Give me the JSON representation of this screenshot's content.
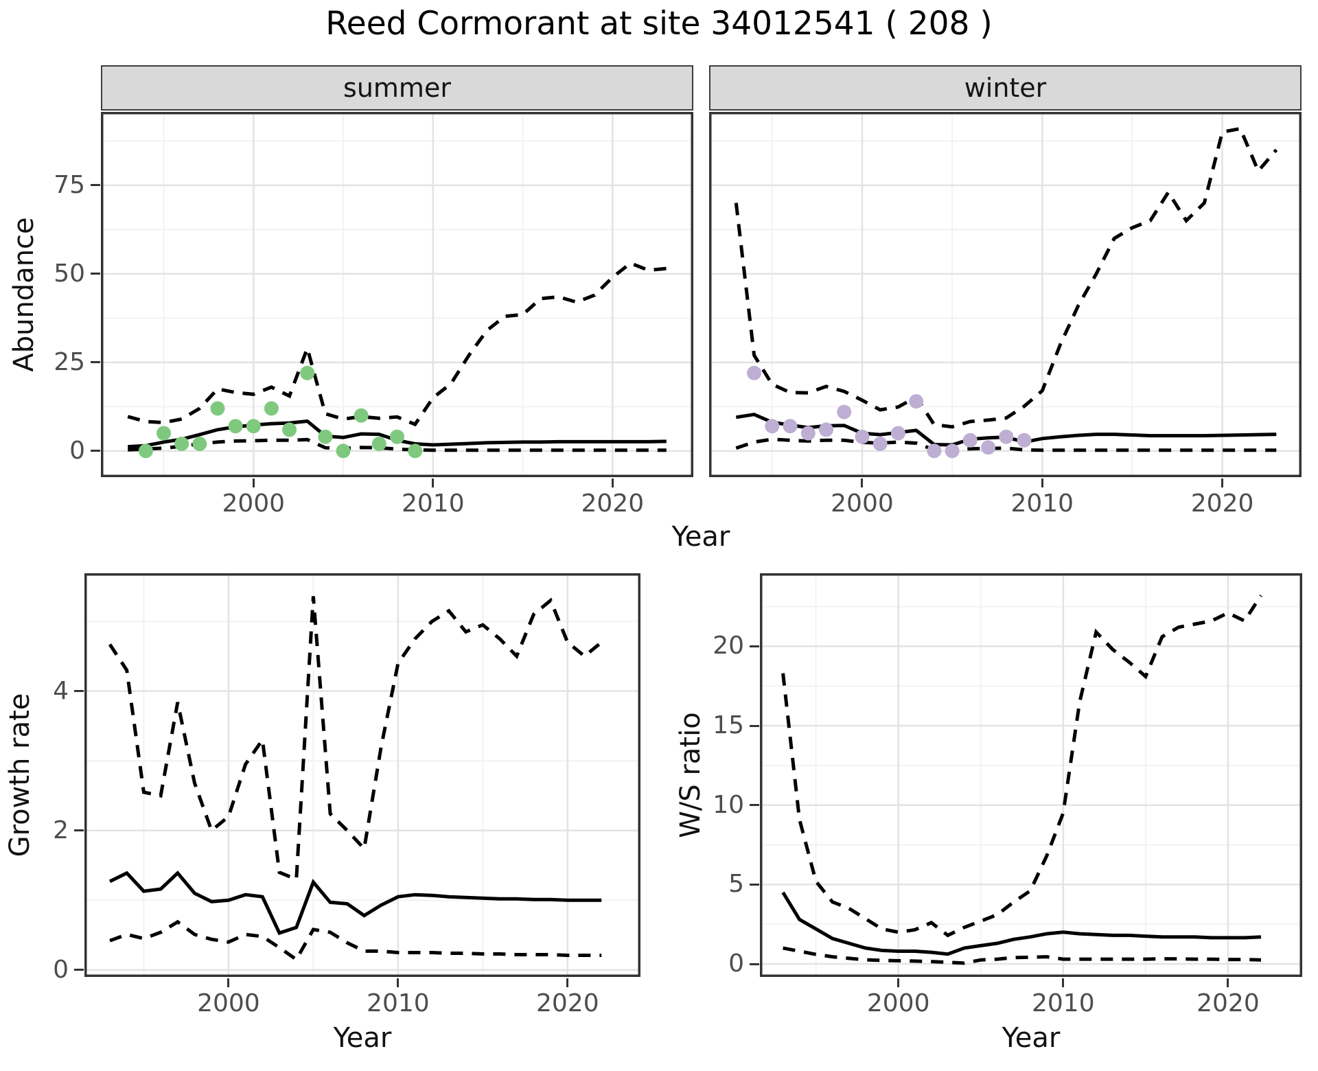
{
  "title": "Reed Cormorant at site 34012541 ( 208 )",
  "colors": {
    "summer_points": "#7FC97F",
    "winter_points": "#BEAED4",
    "line": "#000000",
    "strip_background": "#D9D9D9",
    "panel_border": "#333333",
    "grid_major": "#E3E3E3",
    "grid_minor": "#F2F2F2",
    "axis_text": "#4D4D4D",
    "tick_mark": "#333333"
  },
  "chart_data": [
    {
      "id": "abundance-summer",
      "type": "line",
      "facet_label": "summer",
      "xlabel": "Year",
      "ylabel": "Abundance",
      "xlim": [
        1991.5,
        2024.5
      ],
      "ylim": [
        -7.4,
        95.7
      ],
      "x_ticks": [
        2000,
        2010,
        2020
      ],
      "x_minor": [
        1995,
        2005,
        2015
      ],
      "y_ticks": [
        0,
        25,
        50,
        75
      ],
      "y_minor": [
        12.5,
        37.5,
        62.5,
        87.5
      ],
      "grid": true,
      "legend": "none",
      "years": [
        1993,
        1994,
        1995,
        1996,
        1997,
        1998,
        1999,
        2000,
        2001,
        2002,
        2003,
        2004,
        2005,
        2006,
        2007,
        2008,
        2009,
        2010,
        2011,
        2012,
        2013,
        2014,
        2015,
        2016,
        2017,
        2018,
        2019,
        2020,
        2021,
        2022,
        2023
      ],
      "series": [
        {
          "name": "upper_ci",
          "style": "dashed",
          "values": [
            9.7,
            8.3,
            8.0,
            9.0,
            12.0,
            17.5,
            16.5,
            16.0,
            18.0,
            15.5,
            29.0,
            10.5,
            9.0,
            9.7,
            9.2,
            9.6,
            7.5,
            15.0,
            19.0,
            27.0,
            34.0,
            38.0,
            38.5,
            43.0,
            43.5,
            42.0,
            44.0,
            49.0,
            53.0,
            51.0,
            51.5
          ]
        },
        {
          "name": "lower_ci",
          "style": "dashed",
          "values": [
            0.3,
            0.5,
            0.8,
            1.3,
            2.0,
            2.5,
            2.8,
            2.9,
            3.0,
            3.0,
            3.2,
            0.9,
            0.7,
            1.0,
            0.9,
            0.5,
            0.3,
            0.2,
            0.2,
            0.2,
            0.2,
            0.2,
            0.2,
            0.2,
            0.2,
            0.2,
            0.2,
            0.2,
            0.2,
            0.2,
            0.2
          ]
        },
        {
          "name": "mean",
          "style": "solid",
          "values": [
            1.2,
            1.5,
            2.5,
            3.3,
            4.6,
            6.0,
            6.8,
            7.3,
            7.7,
            7.9,
            8.4,
            4.2,
            3.8,
            4.8,
            4.7,
            3.0,
            2.0,
            1.7,
            1.9,
            2.1,
            2.3,
            2.4,
            2.5,
            2.5,
            2.6,
            2.6,
            2.6,
            2.6,
            2.6,
            2.6,
            2.7
          ]
        }
      ],
      "points": {
        "name": "observed_counts",
        "color": "#7FC97F",
        "years": [
          1994,
          1995,
          1996,
          1997,
          1998,
          1999,
          2000,
          2001,
          2002,
          2003,
          2004,
          2005,
          2006,
          2007,
          2008,
          2009
        ],
        "values": [
          0,
          5,
          2,
          2,
          12,
          7,
          7,
          12,
          6,
          22,
          4,
          0,
          10,
          2,
          4,
          0
        ]
      }
    },
    {
      "id": "abundance-winter",
      "type": "line",
      "facet_label": "winter",
      "xlabel": "Year",
      "ylabel": "Abundance",
      "xlim": [
        1991.5,
        2024.4
      ],
      "ylim": [
        -7.4,
        95.7
      ],
      "x_ticks": [
        2000,
        2010,
        2020
      ],
      "x_minor": [
        1995,
        2005,
        2015
      ],
      "y_ticks": [
        0,
        25,
        50,
        75
      ],
      "y_minor": [
        12.5,
        37.5,
        62.5,
        87.5
      ],
      "grid": true,
      "legend": "none",
      "years": [
        1993,
        1994,
        1995,
        1996,
        1997,
        1998,
        1999,
        2000,
        2001,
        2002,
        2003,
        2004,
        2005,
        2006,
        2007,
        2008,
        2009,
        2010,
        2011,
        2012,
        2013,
        2014,
        2015,
        2016,
        2017,
        2018,
        2019,
        2020,
        2021,
        2022,
        2023
      ],
      "series": [
        {
          "name": "upper_ci",
          "style": "dashed",
          "values": [
            70,
            27,
            18.8,
            16.5,
            16.4,
            18.2,
            16.8,
            14.3,
            11.6,
            12.4,
            15.2,
            7.4,
            6.8,
            8.3,
            8.7,
            9.3,
            12.6,
            17,
            30,
            41,
            50,
            60,
            63,
            65,
            73,
            65,
            70,
            90,
            91,
            79,
            85
          ]
        },
        {
          "name": "lower_ci",
          "style": "dashed",
          "values": [
            0.8,
            2.5,
            3.3,
            3.0,
            2.8,
            3.0,
            3.0,
            2.4,
            2.2,
            2.5,
            2.2,
            0.3,
            0.2,
            0.6,
            0.7,
            0.8,
            0.3,
            0.2,
            0.2,
            0.2,
            0.2,
            0.2,
            0.2,
            0.2,
            0.2,
            0.2,
            0.2,
            0.2,
            0.2,
            0.2,
            0.2
          ]
        },
        {
          "name": "mean",
          "style": "solid",
          "values": [
            9.5,
            10.3,
            8.1,
            7.3,
            6.6,
            7.1,
            7.2,
            5.0,
            4.6,
            5.2,
            5.8,
            1.8,
            1.7,
            3.3,
            3.7,
            3.9,
            2.5,
            3.5,
            4.0,
            4.4,
            4.7,
            4.7,
            4.5,
            4.3,
            4.3,
            4.3,
            4.3,
            4.4,
            4.5,
            4.6,
            4.7
          ]
        }
      ],
      "points": {
        "name": "observed_counts",
        "color": "#BEAED4",
        "years": [
          1994,
          1995,
          1996,
          1997,
          1998,
          1999,
          2000,
          2001,
          2002,
          2003,
          2004,
          2005,
          2006,
          2007,
          2008,
          2009
        ],
        "values": [
          22,
          7,
          7,
          5,
          6,
          11,
          4,
          2,
          5,
          14,
          0,
          0,
          3,
          1,
          4,
          3
        ]
      }
    },
    {
      "id": "growth-rate",
      "type": "line",
      "facet_label": "",
      "xlabel": "Year",
      "ylabel": "Growth rate",
      "xlim": [
        1991.5,
        2024.3
      ],
      "ylim": [
        -0.1,
        5.69
      ],
      "x_ticks": [
        2000,
        2010,
        2020
      ],
      "x_minor": [
        1995,
        2005,
        2015
      ],
      "y_ticks": [
        0,
        2,
        4
      ],
      "y_minor": [
        1,
        3,
        5
      ],
      "grid": true,
      "legend": "none",
      "years": [
        1993,
        1994,
        1995,
        1996,
        1997,
        1998,
        1999,
        2000,
        2001,
        2002,
        2003,
        2004,
        2005,
        2006,
        2007,
        2008,
        2009,
        2010,
        2011,
        2012,
        2013,
        2014,
        2015,
        2016,
        2017,
        2018,
        2019,
        2020,
        2021,
        2022
      ],
      "series": [
        {
          "name": "upper_ci",
          "style": "dashed",
          "values": [
            4.67,
            4.3,
            2.55,
            2.5,
            3.84,
            2.68,
            2.0,
            2.2,
            2.95,
            3.3,
            1.4,
            1.3,
            5.36,
            2.24,
            2.0,
            1.74,
            3.2,
            4.4,
            4.75,
            5.0,
            5.15,
            4.85,
            4.95,
            4.75,
            4.5,
            5.1,
            5.3,
            4.7,
            4.5,
            4.7
          ]
        },
        {
          "name": "lower_ci",
          "style": "dashed",
          "values": [
            0.42,
            0.51,
            0.45,
            0.54,
            0.69,
            0.51,
            0.44,
            0.4,
            0.51,
            0.48,
            0.32,
            0.15,
            0.58,
            0.54,
            0.39,
            0.27,
            0.27,
            0.25,
            0.25,
            0.25,
            0.24,
            0.24,
            0.23,
            0.23,
            0.22,
            0.22,
            0.22,
            0.21,
            0.21,
            0.21
          ]
        },
        {
          "name": "mean",
          "style": "solid",
          "values": [
            1.27,
            1.39,
            1.13,
            1.16,
            1.39,
            1.1,
            0.98,
            1.0,
            1.08,
            1.05,
            0.53,
            0.61,
            1.26,
            0.97,
            0.95,
            0.78,
            0.93,
            1.05,
            1.08,
            1.07,
            1.05,
            1.04,
            1.03,
            1.02,
            1.02,
            1.01,
            1.01,
            1.0,
            1.0,
            1.0
          ]
        }
      ],
      "points": null
    },
    {
      "id": "ws-ratio",
      "type": "line",
      "facet_label": "",
      "xlabel": "Year",
      "ylabel": "W/S ratio",
      "xlim": [
        1991.6,
        2024.5
      ],
      "ylim": [
        -0.82,
        24.6
      ],
      "x_ticks": [
        2000,
        2010,
        2020
      ],
      "x_minor": [
        1995,
        2005,
        2015
      ],
      "y_ticks": [
        0,
        5,
        10,
        15,
        20
      ],
      "y_minor": [
        2.5,
        7.5,
        12.5,
        17.5,
        22.5
      ],
      "grid": true,
      "legend": "none",
      "years": [
        1993,
        1994,
        1995,
        1996,
        1997,
        1998,
        1999,
        2000,
        2001,
        2002,
        2003,
        2004,
        2005,
        2006,
        2007,
        2008,
        2009,
        2010,
        2011,
        2012,
        2013,
        2014,
        2015,
        2016,
        2017,
        2018,
        2019,
        2020,
        2021,
        2022
      ],
      "series": [
        {
          "name": "upper_ci",
          "style": "dashed",
          "values": [
            18.3,
            9.1,
            5.2,
            3.9,
            3.5,
            2.85,
            2.2,
            2.0,
            2.15,
            2.6,
            1.8,
            2.3,
            2.7,
            3.1,
            3.9,
            4.6,
            6.8,
            9.5,
            16.5,
            20.9,
            19.8,
            19.0,
            18.1,
            20.6,
            21.2,
            21.4,
            21.6,
            22.1,
            21.6,
            23.2
          ]
        },
        {
          "name": "lower_ci",
          "style": "dashed",
          "values": [
            1.0,
            0.8,
            0.6,
            0.45,
            0.35,
            0.26,
            0.22,
            0.2,
            0.18,
            0.15,
            0.1,
            0.05,
            0.25,
            0.3,
            0.4,
            0.42,
            0.45,
            0.3,
            0.3,
            0.3,
            0.3,
            0.3,
            0.3,
            0.32,
            0.32,
            0.3,
            0.3,
            0.28,
            0.28,
            0.25
          ]
        },
        {
          "name": "mean",
          "style": "solid",
          "values": [
            4.5,
            2.8,
            2.2,
            1.6,
            1.3,
            1.0,
            0.85,
            0.8,
            0.8,
            0.73,
            0.62,
            1.0,
            1.15,
            1.3,
            1.55,
            1.7,
            1.9,
            2.0,
            1.9,
            1.85,
            1.8,
            1.8,
            1.75,
            1.7,
            1.7,
            1.7,
            1.65,
            1.65,
            1.65,
            1.7
          ]
        }
      ],
      "points": null
    }
  ]
}
